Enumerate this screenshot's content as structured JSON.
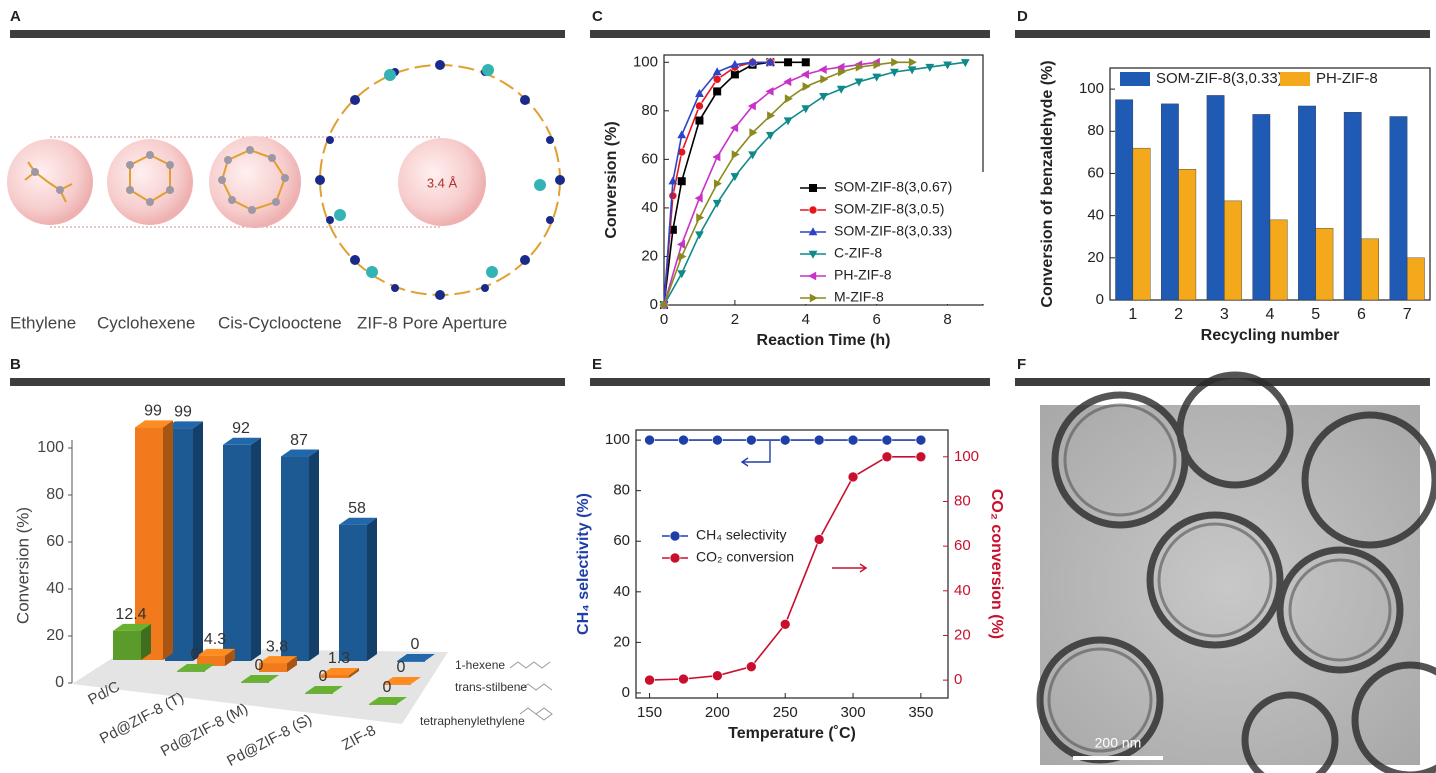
{
  "panel_labels": [
    "A",
    "B",
    "C",
    "D",
    "E",
    "F"
  ],
  "panel_a": {
    "molecules": [
      "Ethylene",
      "Cyclohexene",
      "Cis-Cyclooctene",
      "ZIF-8 Pore Aperture"
    ],
    "aperture_label": "3.4 Å"
  },
  "panel_f": {
    "scale_bar": "200 nm"
  },
  "chart_data": [
    {
      "type": "bar3d",
      "ylabel": "Conversion (%)",
      "categories": [
        "Pd/C",
        "Pd@ZIF-8 (T)",
        "Pd@ZIF-8 (M)",
        "Pd@ZIF-8 (S)",
        "ZIF-8"
      ],
      "series": [
        {
          "name": "1-hexene",
          "color": "#1d5a94",
          "values": [
            99,
            92,
            87,
            58,
            0
          ]
        },
        {
          "name": "trans-stilbene",
          "color": "#f07a1c",
          "values": [
            99,
            4.3,
            3.8,
            1.3,
            0
          ]
        },
        {
          "name": "tetraphenylethylene",
          "color": "#5b9b2b",
          "values": [
            12.4,
            0,
            0,
            0,
            0
          ]
        }
      ],
      "ylim": [
        0,
        100
      ],
      "yticks": [
        0,
        20,
        40,
        60,
        80,
        100
      ]
    },
    {
      "type": "line",
      "xlabel": "Reaction Time (h)",
      "ylabel": "Conversion (%)",
      "xlim": [
        0,
        9
      ],
      "ylim": [
        0,
        103
      ],
      "xticks": [
        0,
        2,
        4,
        6,
        8
      ],
      "yticks": [
        0,
        20,
        40,
        60,
        80,
        100
      ],
      "series": [
        {
          "name": "SOM-ZIF-8(3,0.67)",
          "color": "#000000",
          "marker": "square",
          "x": [
            0,
            0.25,
            0.5,
            1,
            1.5,
            2,
            2.5,
            3,
            3.5,
            4
          ],
          "values": [
            0,
            31,
            51,
            76,
            88,
            95,
            99,
            100,
            100,
            100
          ]
        },
        {
          "name": "SOM-ZIF-8(3,0.5)",
          "color": "#e8141c",
          "marker": "circle",
          "x": [
            0,
            0.25,
            0.5,
            1,
            1.5,
            2,
            2.5,
            3
          ],
          "values": [
            0,
            45,
            63,
            82,
            93,
            98,
            100,
            100
          ]
        },
        {
          "name": "SOM-ZIF-8(3,0.33)",
          "color": "#2b44c8",
          "marker": "triangle-up",
          "x": [
            0,
            0.25,
            0.5,
            1,
            1.5,
            2,
            2.5,
            3
          ],
          "values": [
            0,
            51,
            70,
            87,
            96,
            99,
            100,
            100
          ]
        },
        {
          "name": "C-ZIF-8",
          "color": "#0f8a8a",
          "marker": "triangle-down",
          "x": [
            0,
            0.5,
            1,
            1.5,
            2,
            2.5,
            3,
            3.5,
            4,
            4.5,
            5,
            5.5,
            6,
            6.5,
            7,
            7.5,
            8,
            8.5
          ],
          "values": [
            0,
            13,
            29,
            42,
            53,
            62,
            70,
            76,
            81,
            86,
            89,
            92,
            94,
            96,
            97,
            98,
            99,
            100
          ]
        },
        {
          "name": "PH-ZIF-8",
          "color": "#c832c8",
          "marker": "triangle-left",
          "x": [
            0,
            0.5,
            1,
            1.5,
            2,
            2.5,
            3,
            3.5,
            4,
            4.5,
            5,
            5.5,
            6
          ],
          "values": [
            0,
            25,
            44,
            61,
            73,
            82,
            88,
            92,
            95,
            97,
            98,
            99,
            100
          ]
        },
        {
          "name": "M-ZIF-8",
          "color": "#8a8a1e",
          "marker": "triangle-right",
          "x": [
            0,
            0.5,
            1,
            1.5,
            2,
            2.5,
            3,
            3.5,
            4,
            4.5,
            5,
            5.5,
            6,
            6.5,
            7
          ],
          "values": [
            0,
            20,
            36,
            50,
            62,
            71,
            78,
            85,
            90,
            93,
            96,
            98,
            99,
            100,
            100
          ]
        }
      ]
    },
    {
      "type": "bar",
      "xlabel": "Recycling number",
      "ylabel": "Conversion of benzaldehyde (%)",
      "categories": [
        "1",
        "2",
        "3",
        "4",
        "5",
        "6",
        "7"
      ],
      "ylim": [
        0,
        110
      ],
      "yticks": [
        0,
        20,
        40,
        60,
        80,
        100
      ],
      "series": [
        {
          "name": "SOM-ZIF-8(3,0.33)",
          "color": "#1f5bb5",
          "values": [
            95,
            93,
            97,
            88,
            92,
            89,
            87
          ]
        },
        {
          "name": "PH-ZIF-8",
          "color": "#f4a81c",
          "values": [
            72,
            62,
            47,
            38,
            34,
            29,
            20
          ]
        }
      ]
    },
    {
      "type": "line",
      "xlabel": "Temperature (˚C)",
      "ylabel": "CH₄ selectivity (%)",
      "y2label": "CO₂ conversion (%)",
      "x": [
        150,
        175,
        200,
        225,
        250,
        275,
        300,
        325,
        350
      ],
      "xlim": [
        140,
        370
      ],
      "xticks": [
        150,
        200,
        250,
        300,
        350
      ],
      "ylim": [
        -2,
        104
      ],
      "yticks": [
        0,
        20,
        40,
        60,
        80,
        100
      ],
      "y2lim": [
        -8,
        112
      ],
      "y2ticks": [
        0,
        20,
        40,
        60,
        80,
        100
      ],
      "series": [
        {
          "name": "CH₄ selectivity",
          "color": "#1f3fa8",
          "values": [
            100,
            100,
            100,
            100,
            100,
            100,
            100,
            100,
            100
          ]
        },
        {
          "name": "CO₂ conversion",
          "color": "#c8102e",
          "axis": "y2",
          "values": [
            0,
            0.5,
            2,
            6,
            25,
            63,
            91,
            100,
            100
          ]
        }
      ]
    }
  ]
}
